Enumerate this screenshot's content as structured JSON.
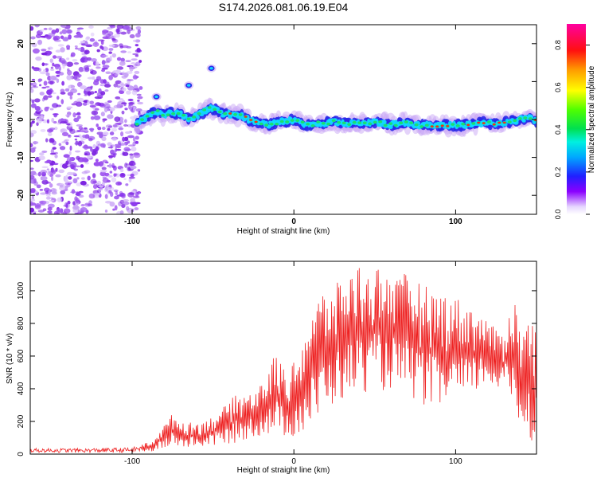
{
  "title": "S174.2026.081.06.19.E04",
  "colors": {
    "snr_line": "#ee2222",
    "axis": "#000000",
    "background": "#ffffff",
    "noise": "#7a1fe0"
  },
  "chart_data": [
    {
      "type": "heatmap",
      "title": "S174.2026.081.06.19.E04",
      "xlabel": "Height of straight line (km)",
      "ylabel": "Frequency (Hz)",
      "xlim": [
        -163,
        150
      ],
      "ylim": [
        -25,
        25
      ],
      "x_ticks": [
        -100,
        0,
        100
      ],
      "x_tick_labels": [
        "-100",
        "0",
        "100"
      ],
      "y_ticks": [
        -20,
        -10,
        0,
        10,
        20
      ],
      "y_tick_labels": [
        "-20",
        "-10",
        "0",
        "10",
        "20"
      ],
      "noise_region_x": [
        -163,
        -95
      ],
      "signal_trace": {
        "x": [
          -97,
          -92,
          -88,
          -84,
          -80,
          -76,
          -72,
          -68,
          -64,
          -60,
          -56,
          -52,
          -48,
          -44,
          -40,
          -36,
          -32,
          -28,
          -24,
          -20,
          -16,
          -12,
          -8,
          -4,
          0,
          5,
          10,
          15,
          20,
          25,
          30,
          35,
          40,
          45,
          50,
          55,
          60,
          65,
          70,
          75,
          80,
          85,
          90,
          95,
          100,
          105,
          110,
          115,
          120,
          125,
          130,
          135,
          140,
          145,
          150
        ],
        "y": [
          -1,
          0.5,
          1.5,
          2,
          1,
          2,
          1.5,
          1,
          0,
          1,
          2,
          3,
          2.5,
          1.5,
          1.5,
          1,
          1,
          0,
          -0.5,
          -1,
          -1.5,
          -1,
          -0.5,
          -0.5,
          0,
          -1,
          -1.5,
          -1,
          -1,
          -0.5,
          -1,
          -1,
          -1,
          -1,
          -0.5,
          -1,
          -1.5,
          -1,
          -1,
          -1.5,
          -1.5,
          -1.5,
          -1.5,
          -1.5,
          -1.5,
          -1.5,
          -1,
          -1,
          -1,
          -1,
          -1,
          -0.5,
          0,
          0.5,
          -0.5
        ]
      },
      "detached_blobs": [
        {
          "x": -85,
          "y": 6
        },
        {
          "x": -65,
          "y": 9
        },
        {
          "x": -51,
          "y": 13.5
        }
      ],
      "colorbar": {
        "label": "Normalized spectral amplitude",
        "range": [
          0.0,
          0.9
        ],
        "ticks": [
          0.0,
          0.2,
          0.4,
          0.6,
          0.8
        ],
        "tick_labels": [
          "0.0",
          "0.2",
          "0.4",
          "0.6",
          "0.8"
        ]
      }
    },
    {
      "type": "line",
      "xlabel": "Height of straight line (km)",
      "ylabel": "SNR (10 * v/v)",
      "xlim": [
        -163,
        150
      ],
      "ylim": [
        0,
        1180
      ],
      "x_ticks": [
        -100,
        0,
        100
      ],
      "x_tick_labels": [
        "-100",
        "0",
        "100"
      ],
      "y_ticks": [
        0,
        200,
        400,
        600,
        800,
        1000
      ],
      "y_tick_labels": [
        "0",
        "200",
        "400",
        "600",
        "800",
        "1000"
      ],
      "series": [
        {
          "name": "SNR",
          "envelope": {
            "x": [
              -163,
              -130,
              -100,
              -88,
              -80,
              -75,
              -70,
              -60,
              -50,
              -40,
              -35,
              -30,
              -25,
              -20,
              -15,
              -12,
              -8,
              -5,
              0,
              5,
              10,
              15,
              18,
              20,
              25,
              30,
              35,
              40,
              45,
              50,
              55,
              60,
              65,
              70,
              75,
              80,
              85,
              90,
              95,
              100,
              105,
              110,
              115,
              120,
              125,
              130,
              135,
              140,
              145,
              150
            ],
            "low": [
              10,
              10,
              10,
              15,
              30,
              50,
              40,
              40,
              50,
              60,
              70,
              90,
              100,
              110,
              120,
              100,
              90,
              110,
              100,
              120,
              150,
              180,
              250,
              280,
              300,
              320,
              350,
              380,
              380,
              400,
              380,
              400,
              380,
              350,
              320,
              300,
              280,
              260,
              300,
              320,
              300,
              350,
              400,
              420,
              400,
              380,
              300,
              150,
              100,
              60
            ],
            "high": [
              35,
              35,
              40,
              80,
              180,
              250,
              200,
              190,
              230,
              320,
              380,
              360,
              400,
              440,
              500,
              640,
              560,
              520,
              560,
              700,
              860,
              960,
              1000,
              980,
              1030,
              1080,
              1120,
              1170,
              1100,
              1170,
              1120,
              1150,
              1060,
              1130,
              1080,
              1040,
              1010,
              980,
              1000,
              960,
              940,
              900,
              860,
              820,
              760,
              740,
              1010,
              800,
              820,
              860
            ]
          }
        }
      ]
    }
  ]
}
